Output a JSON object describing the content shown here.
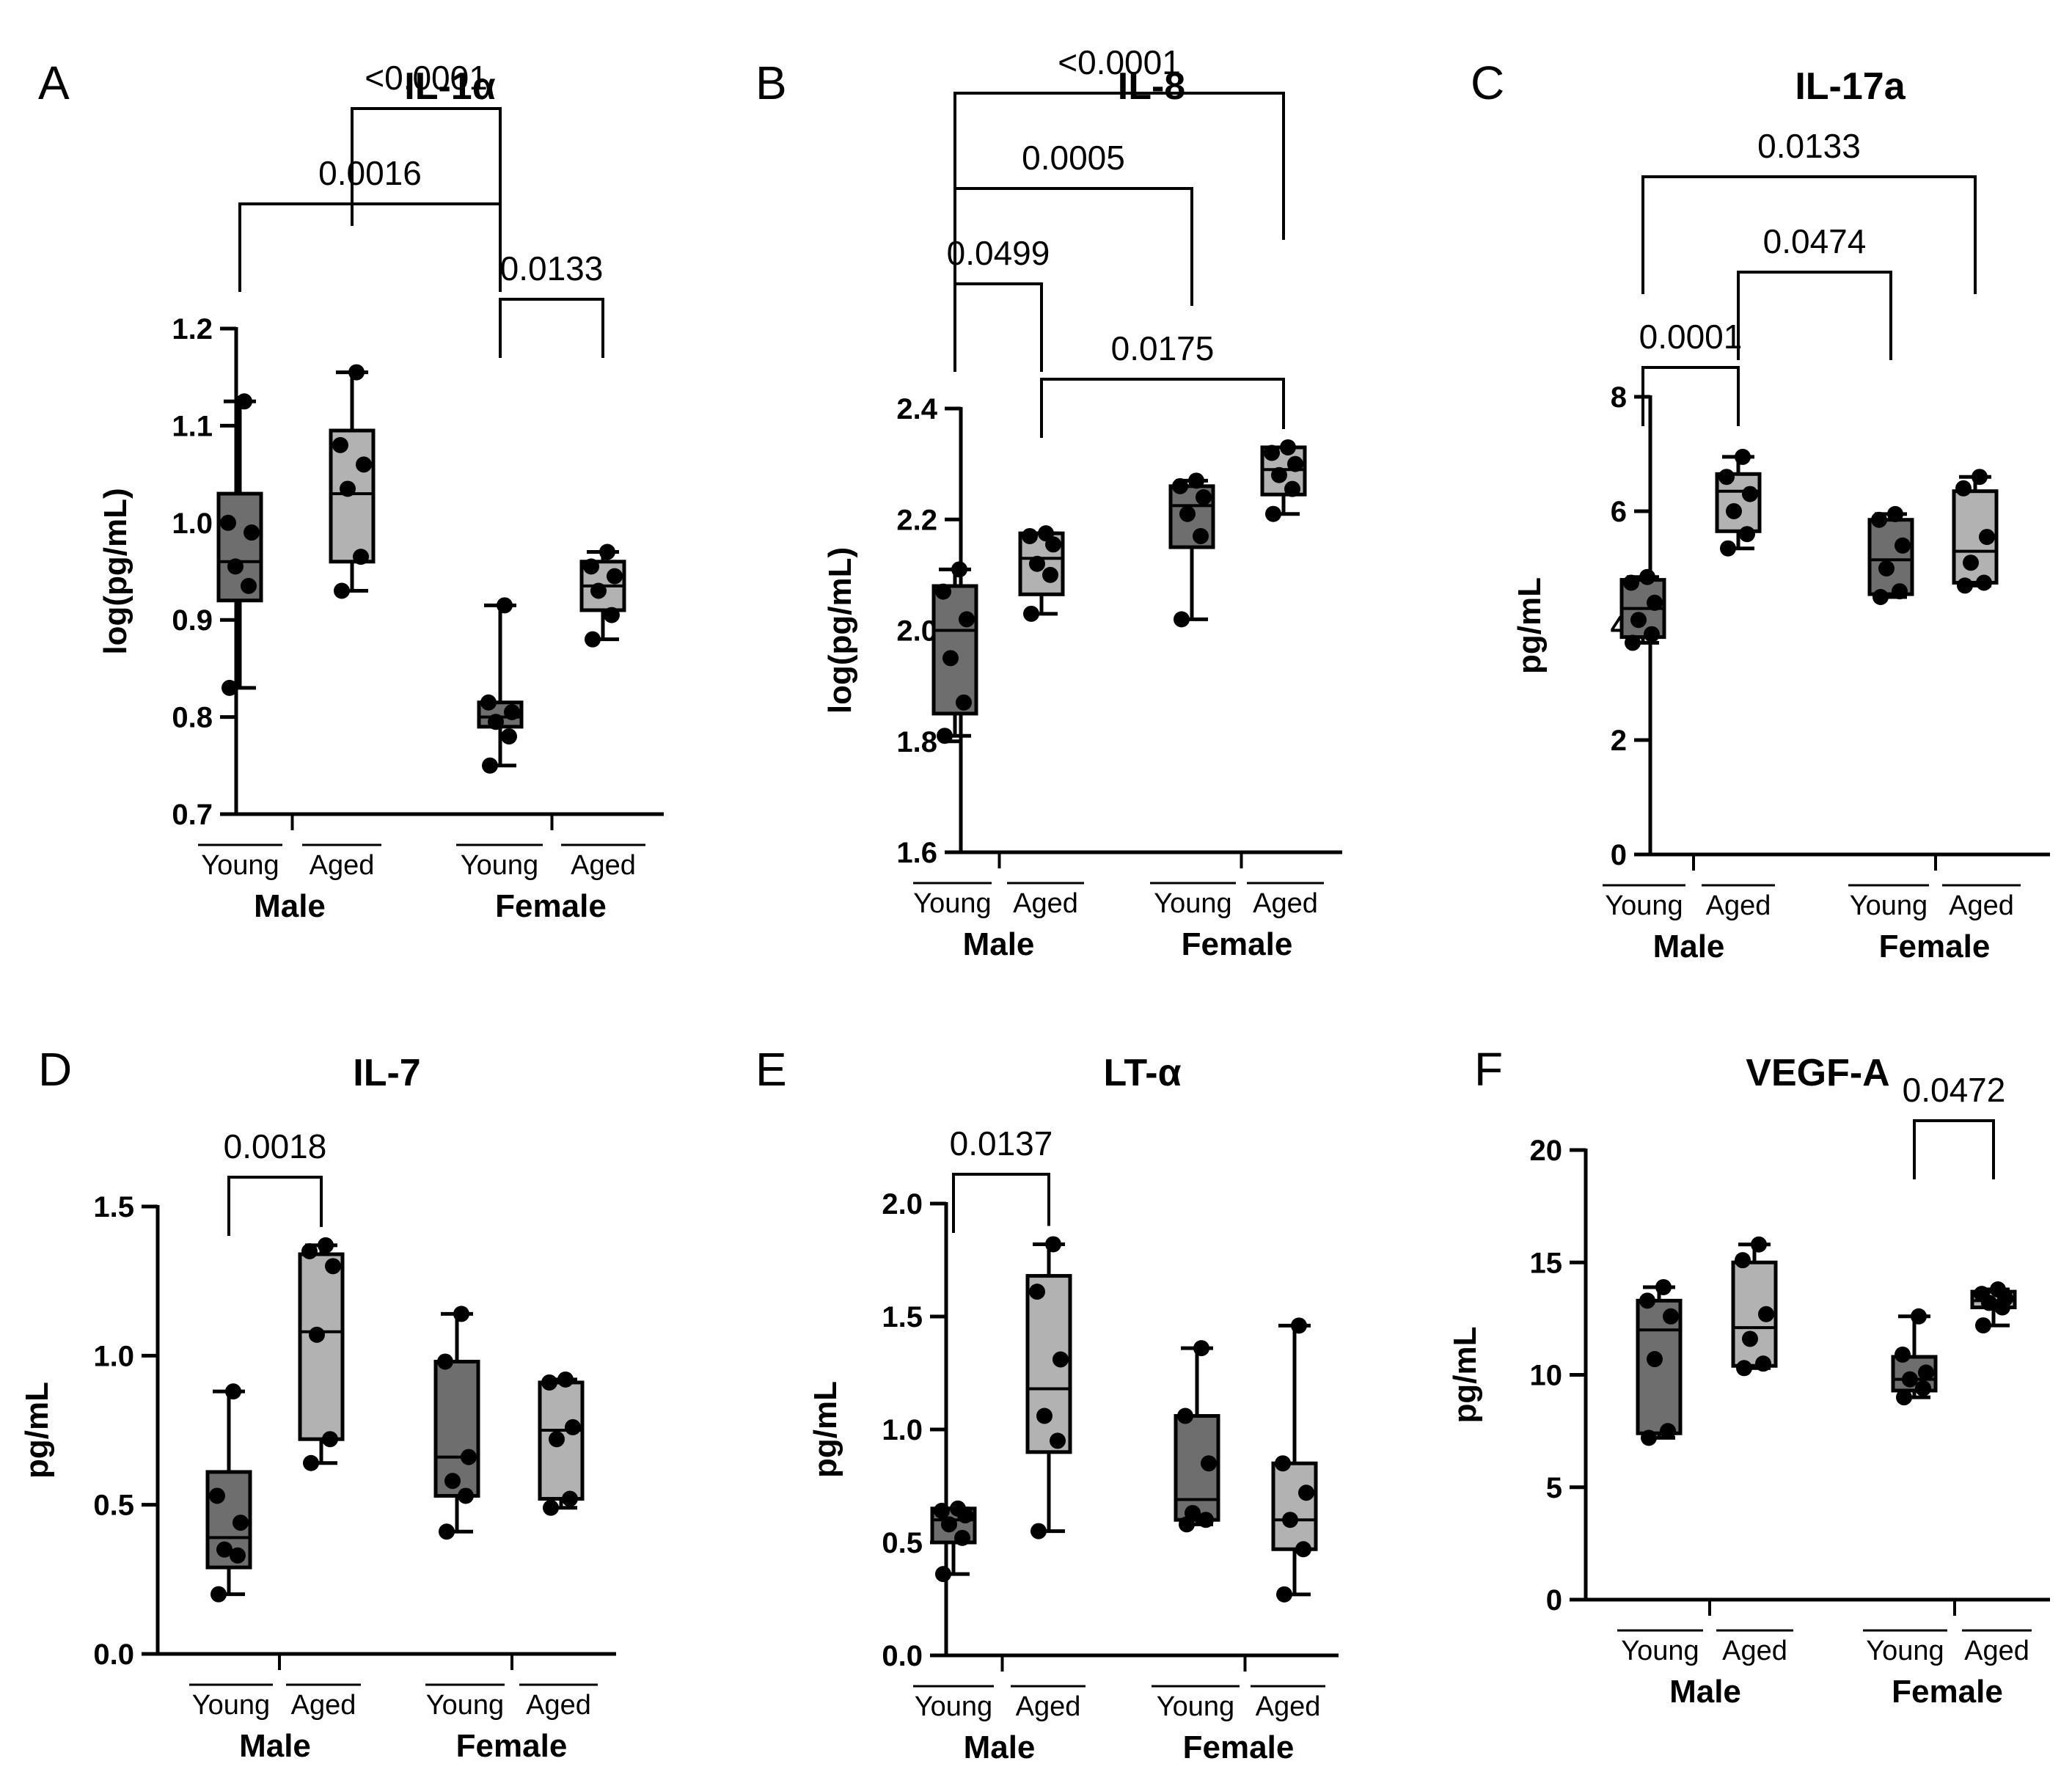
{
  "chart_data": [
    {
      "type": "box",
      "panel": "A",
      "title": "IL-1α",
      "ylabel": "log(pg/mL)",
      "ylim": [
        0.7,
        1.2
      ],
      "yticks": [
        0.7,
        0.8,
        0.9,
        1.0,
        1.1,
        1.2
      ],
      "ytick_labels": [
        "0.7",
        "0.8",
        "0.9",
        "1.0",
        "1.1",
        "1.2"
      ],
      "groups": [
        "Young",
        "Aged",
        "Young",
        "Aged"
      ],
      "sexes": [
        "Male",
        "Female"
      ],
      "boxes": [
        {
          "min": 0.83,
          "q1": 0.92,
          "median": 0.96,
          "q3": 1.03,
          "max": 1.125,
          "points": [
            0.83,
            0.935,
            0.955,
            0.99,
            1.0,
            1.125
          ]
        },
        {
          "min": 0.93,
          "q1": 0.96,
          "median": 1.03,
          "q3": 1.095,
          "max": 1.155,
          "points": [
            0.93,
            0.965,
            1.035,
            1.06,
            1.08,
            1.155
          ]
        },
        {
          "min": 0.75,
          "q1": 0.79,
          "median": 0.8,
          "q3": 0.815,
          "max": 0.915,
          "points": [
            0.75,
            0.78,
            0.795,
            0.805,
            0.815,
            0.915
          ]
        },
        {
          "min": 0.88,
          "q1": 0.91,
          "median": 0.935,
          "q3": 0.96,
          "max": 0.97,
          "points": [
            0.88,
            0.905,
            0.93,
            0.945,
            0.955,
            0.97
          ]
        }
      ],
      "comparisons": [
        {
          "from": 1,
          "to": 2,
          "label": "<0.0001"
        },
        {
          "from": 0,
          "to": 2,
          "label": "0.0016"
        },
        {
          "from": 2,
          "to": 3,
          "label": "0.0133"
        }
      ]
    },
    {
      "type": "box",
      "panel": "B",
      "title": "IL-8",
      "ylabel": "log(pg/mL)",
      "ylim": [
        1.6,
        2.4
      ],
      "yticks": [
        1.6,
        1.8,
        2.0,
        2.2,
        2.4
      ],
      "ytick_labels": [
        "1.6",
        "1.8",
        "2.0",
        "2.2",
        "2.4"
      ],
      "groups": [
        "Young",
        "Aged",
        "Young",
        "Aged"
      ],
      "sexes": [
        "Male",
        "Female"
      ],
      "boxes": [
        {
          "min": 1.81,
          "q1": 1.85,
          "median": 2.0,
          "q3": 2.08,
          "max": 2.11,
          "points": [
            1.81,
            1.87,
            1.95,
            2.02,
            2.07,
            2.11
          ]
        },
        {
          "min": 2.03,
          "q1": 2.065,
          "median": 2.13,
          "q3": 2.175,
          "max": 2.175,
          "points": [
            2.03,
            2.1,
            2.12,
            2.155,
            2.17,
            2.175
          ]
        },
        {
          "min": 2.02,
          "q1": 2.15,
          "median": 2.225,
          "q3": 2.26,
          "max": 2.27,
          "points": [
            2.02,
            2.17,
            2.21,
            2.24,
            2.26,
            2.27
          ]
        },
        {
          "min": 2.21,
          "q1": 2.245,
          "median": 2.29,
          "q3": 2.33,
          "max": 2.33,
          "points": [
            2.21,
            2.255,
            2.28,
            2.3,
            2.32,
            2.33
          ]
        }
      ],
      "comparisons": [
        {
          "from": 0,
          "to": 3,
          "label": "<0.0001"
        },
        {
          "from": 0,
          "to": 2,
          "label": "0.0005"
        },
        {
          "from": 0,
          "to": 1,
          "label": "0.0499"
        },
        {
          "from": 1,
          "to": 3,
          "label": "0.0175"
        }
      ]
    },
    {
      "type": "box",
      "panel": "C",
      "title": "IL-17a",
      "ylabel": "pg/mL",
      "ylim": [
        0,
        8
      ],
      "yticks": [
        0,
        2,
        4,
        6,
        8
      ],
      "ytick_labels": [
        "0",
        "2",
        "4",
        "6",
        "8"
      ],
      "groups": [
        "Young",
        "Aged",
        "Young",
        "Aged"
      ],
      "sexes": [
        "Male",
        "Female"
      ],
      "boxes": [
        {
          "min": 3.7,
          "q1": 3.8,
          "median": 4.3,
          "q3": 4.8,
          "max": 4.85,
          "points": [
            3.7,
            3.85,
            4.1,
            4.4,
            4.75,
            4.85
          ]
        },
        {
          "min": 5.35,
          "q1": 5.65,
          "median": 6.35,
          "q3": 6.65,
          "max": 6.95,
          "points": [
            5.35,
            5.6,
            6.0,
            6.3,
            6.6,
            6.95
          ]
        },
        {
          "min": 4.5,
          "q1": 4.55,
          "median": 5.15,
          "q3": 5.85,
          "max": 5.95,
          "points": [
            4.5,
            4.6,
            5.0,
            5.4,
            5.85,
            5.95
          ]
        },
        {
          "min": 4.7,
          "q1": 4.75,
          "median": 5.3,
          "q3": 6.35,
          "max": 6.6,
          "points": [
            4.7,
            4.75,
            5.1,
            5.55,
            6.4,
            6.6
          ]
        }
      ],
      "comparisons": [
        {
          "from": 0,
          "to": 3,
          "label": "0.0133"
        },
        {
          "from": 1,
          "to": 2,
          "label": "0.0474"
        },
        {
          "from": 0,
          "to": 1,
          "label": "0.0001"
        }
      ]
    },
    {
      "type": "box",
      "panel": "D",
      "title": "IL-7",
      "ylabel": "pg/mL",
      "ylim": [
        0,
        1.5
      ],
      "yticks": [
        0,
        0.5,
        1.0,
        1.5
      ],
      "ytick_labels": [
        "0.0",
        "0.5",
        "1.0",
        "1.5"
      ],
      "groups": [
        "Young",
        "Aged",
        "Young",
        "Aged"
      ],
      "sexes": [
        "Male",
        "Female"
      ],
      "boxes": [
        {
          "min": 0.2,
          "q1": 0.29,
          "median": 0.39,
          "q3": 0.61,
          "max": 0.88,
          "points": [
            0.2,
            0.33,
            0.35,
            0.44,
            0.53,
            0.88
          ]
        },
        {
          "min": 0.64,
          "q1": 0.72,
          "median": 1.08,
          "q3": 1.34,
          "max": 1.37,
          "points": [
            0.64,
            0.72,
            1.07,
            1.3,
            1.35,
            1.37
          ]
        },
        {
          "min": 0.41,
          "q1": 0.53,
          "median": 0.66,
          "q3": 0.98,
          "max": 1.14,
          "points": [
            0.41,
            0.53,
            0.58,
            0.66,
            0.98,
            1.14
          ]
        },
        {
          "min": 0.49,
          "q1": 0.52,
          "median": 0.75,
          "q3": 0.91,
          "max": 0.92,
          "points": [
            0.49,
            0.52,
            0.72,
            0.76,
            0.91,
            0.92
          ]
        }
      ],
      "comparisons": [
        {
          "from": 0,
          "to": 1,
          "label": "0.0018"
        }
      ]
    },
    {
      "type": "box",
      "panel": "E",
      "title": "LT-α",
      "ylabel": "pg/mL",
      "ylim": [
        0,
        2.0
      ],
      "yticks": [
        0,
        0.5,
        1.0,
        1.5,
        2.0
      ],
      "ytick_labels": [
        "0.0",
        "0.5",
        "1.0",
        "1.5",
        "2.0"
      ],
      "groups": [
        "Young",
        "Aged",
        "Young",
        "Aged"
      ],
      "sexes": [
        "Male",
        "Female"
      ],
      "boxes": [
        {
          "min": 0.36,
          "q1": 0.5,
          "median": 0.6,
          "q3": 0.65,
          "max": 0.65,
          "points": [
            0.36,
            0.52,
            0.58,
            0.62,
            0.64,
            0.65
          ]
        },
        {
          "min": 0.55,
          "q1": 0.9,
          "median": 1.18,
          "q3": 1.68,
          "max": 1.82,
          "points": [
            0.55,
            0.95,
            1.06,
            1.31,
            1.61,
            1.82
          ]
        },
        {
          "min": 0.58,
          "q1": 0.6,
          "median": 0.69,
          "q3": 1.06,
          "max": 1.36,
          "points": [
            0.58,
            0.6,
            0.63,
            0.85,
            1.06,
            1.36
          ]
        },
        {
          "min": 0.27,
          "q1": 0.47,
          "median": 0.6,
          "q3": 0.85,
          "max": 1.46,
          "points": [
            0.27,
            0.47,
            0.6,
            0.72,
            0.85,
            1.46
          ]
        }
      ],
      "comparisons": [
        {
          "from": 0,
          "to": 1,
          "label": "0.0137"
        }
      ]
    },
    {
      "type": "box",
      "panel": "F",
      "title": "VEGF-A",
      "ylabel": "pg/mL",
      "ylim": [
        0,
        20
      ],
      "yticks": [
        0,
        5,
        10,
        15,
        20
      ],
      "ytick_labels": [
        "0",
        "5",
        "10",
        "15",
        "20"
      ],
      "groups": [
        "Young",
        "Aged",
        "Young",
        "Aged"
      ],
      "sexes": [
        "Male",
        "Female"
      ],
      "boxes": [
        {
          "min": 7.2,
          "q1": 7.4,
          "median": 12.0,
          "q3": 13.3,
          "max": 13.9,
          "points": [
            7.2,
            7.5,
            10.7,
            12.6,
            13.3,
            13.9
          ]
        },
        {
          "min": 10.3,
          "q1": 10.4,
          "median": 12.1,
          "q3": 15.0,
          "max": 15.8,
          "points": [
            10.3,
            10.5,
            11.6,
            12.7,
            15.1,
            15.8
          ]
        },
        {
          "min": 9.0,
          "q1": 9.3,
          "median": 9.8,
          "q3": 10.8,
          "max": 12.6,
          "points": [
            9.0,
            9.4,
            9.8,
            10.1,
            10.9,
            12.6
          ]
        },
        {
          "min": 12.2,
          "q1": 13.0,
          "median": 13.3,
          "q3": 13.7,
          "max": 13.8,
          "points": [
            12.2,
            13.0,
            13.2,
            13.4,
            13.6,
            13.8
          ]
        }
      ],
      "comparisons": [
        {
          "from": 2,
          "to": 3,
          "label": "0.0472"
        }
      ]
    }
  ],
  "colors": {
    "young_box": "#6e6e6e",
    "aged_box": "#b2b2b2",
    "ink": "#000000"
  }
}
